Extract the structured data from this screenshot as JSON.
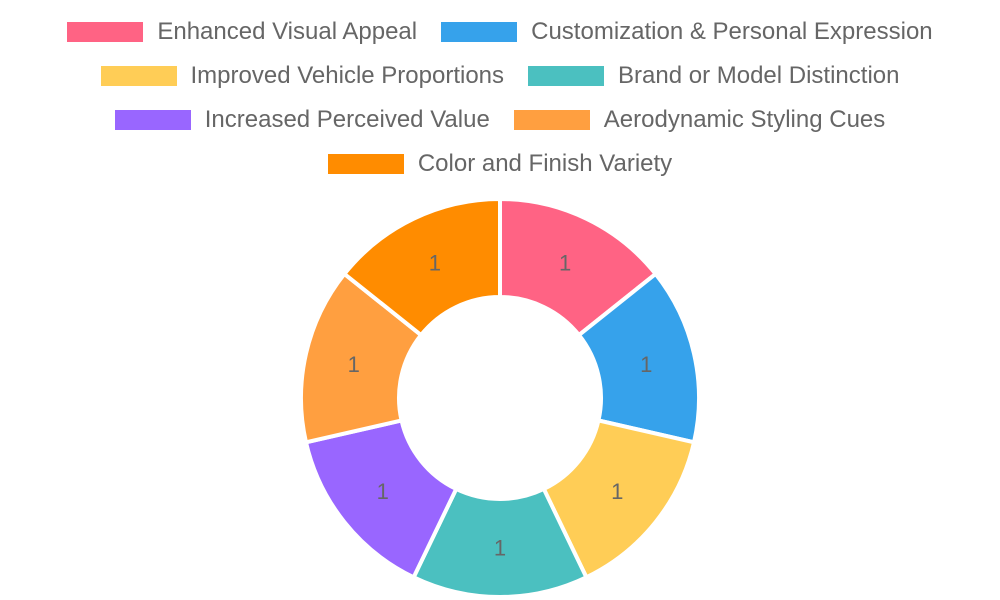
{
  "chart_data": {
    "type": "doughnut",
    "categories": [
      "Enhanced Visual Appeal",
      "Customization & Personal Expression",
      "Improved Vehicle Proportions",
      "Brand or Model Distinction",
      "Increased Perceived Value",
      "Aerodynamic Styling Cues",
      "Color and Finish Variety"
    ],
    "values": [
      1,
      1,
      1,
      1,
      1,
      1,
      1
    ],
    "value_labels": [
      "1",
      "1",
      "1",
      "1",
      "1",
      "1",
      "1"
    ],
    "colors": [
      "#ff6384",
      "#36a2eb",
      "#ffcd56",
      "#4bc0c0",
      "#9966ff",
      "#ff9f40",
      "#ff8c00"
    ],
    "legend_position": "top",
    "title": ""
  }
}
